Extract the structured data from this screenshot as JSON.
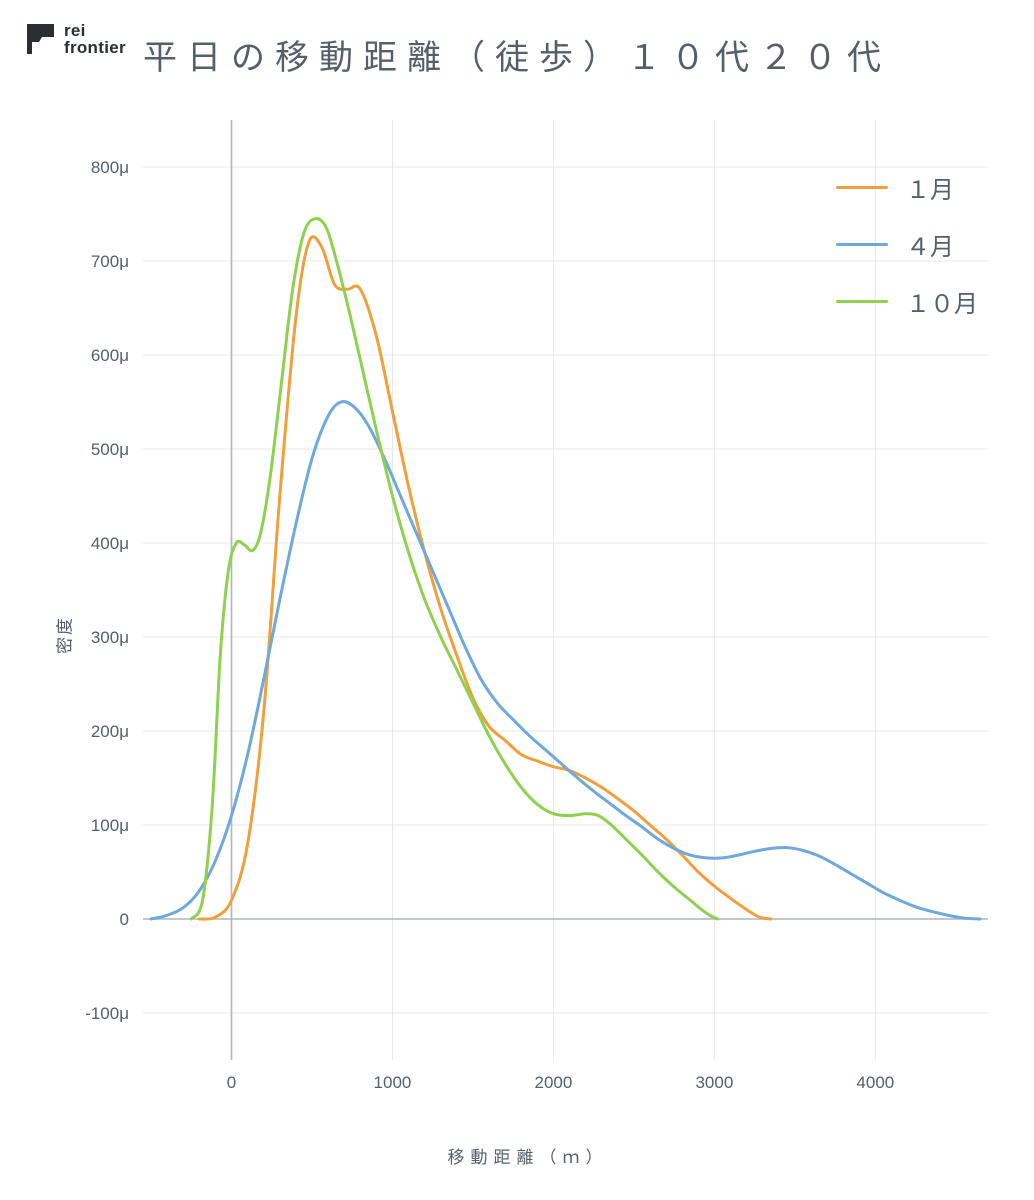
{
  "logo": {
    "line1": "rei",
    "line2": "frontier"
  },
  "title": "平日の移動距離（徒歩）１０代２０代",
  "chart": {
    "type": "line",
    "background_color": "#ffffff",
    "grid_color": "#e8e8e8",
    "axis_color": "#aeb5bc",
    "zero_line_color": "#aeb5bc",
    "line_width": 3,
    "title_fontsize": 34,
    "label_fontsize": 17,
    "tick_fontsize": 17,
    "legend_fontsize": 24,
    "xlabel": "移動距離（ｍ）",
    "ylabel": "密度",
    "xlim": [
      -550,
      4700
    ],
    "ylim": [
      -150,
      850
    ],
    "xticks": [
      0,
      1000,
      2000,
      3000,
      4000
    ],
    "yticks": [
      -100,
      0,
      100,
      200,
      300,
      400,
      500,
      600,
      700,
      800
    ],
    "ytick_suffix": "μ",
    "legend_position": "top-right",
    "series": [
      {
        "name": "１月",
        "color": "#f0a03a",
        "points": [
          [
            -200,
            0
          ],
          [
            -100,
            2
          ],
          [
            0,
            20
          ],
          [
            100,
            80
          ],
          [
            200,
            220
          ],
          [
            300,
            450
          ],
          [
            400,
            640
          ],
          [
            480,
            720
          ],
          [
            560,
            715
          ],
          [
            640,
            675
          ],
          [
            720,
            670
          ],
          [
            800,
            670
          ],
          [
            900,
            620
          ],
          [
            1000,
            540
          ],
          [
            1100,
            460
          ],
          [
            1200,
            390
          ],
          [
            1300,
            330
          ],
          [
            1400,
            280
          ],
          [
            1500,
            235
          ],
          [
            1600,
            205
          ],
          [
            1700,
            190
          ],
          [
            1800,
            175
          ],
          [
            1900,
            168
          ],
          [
            2000,
            162
          ],
          [
            2100,
            158
          ],
          [
            2200,
            150
          ],
          [
            2300,
            140
          ],
          [
            2400,
            128
          ],
          [
            2500,
            115
          ],
          [
            2600,
            100
          ],
          [
            2700,
            85
          ],
          [
            2800,
            68
          ],
          [
            2900,
            50
          ],
          [
            3000,
            35
          ],
          [
            3100,
            22
          ],
          [
            3200,
            10
          ],
          [
            3280,
            2
          ],
          [
            3350,
            0
          ]
        ]
      },
      {
        "name": "４月",
        "color": "#6fa8dc",
        "points": [
          [
            -500,
            0
          ],
          [
            -400,
            4
          ],
          [
            -300,
            12
          ],
          [
            -200,
            30
          ],
          [
            -100,
            62
          ],
          [
            0,
            110
          ],
          [
            100,
            175
          ],
          [
            200,
            255
          ],
          [
            300,
            340
          ],
          [
            400,
            420
          ],
          [
            500,
            490
          ],
          [
            600,
            535
          ],
          [
            680,
            550
          ],
          [
            760,
            545
          ],
          [
            850,
            525
          ],
          [
            950,
            490
          ],
          [
            1050,
            450
          ],
          [
            1150,
            410
          ],
          [
            1250,
            370
          ],
          [
            1350,
            330
          ],
          [
            1450,
            290
          ],
          [
            1550,
            255
          ],
          [
            1650,
            230
          ],
          [
            1750,
            212
          ],
          [
            1850,
            195
          ],
          [
            1950,
            180
          ],
          [
            2050,
            165
          ],
          [
            2150,
            150
          ],
          [
            2250,
            136
          ],
          [
            2350,
            123
          ],
          [
            2450,
            110
          ],
          [
            2550,
            98
          ],
          [
            2650,
            85
          ],
          [
            2750,
            75
          ],
          [
            2850,
            68
          ],
          [
            2950,
            65
          ],
          [
            3050,
            65
          ],
          [
            3150,
            68
          ],
          [
            3250,
            72
          ],
          [
            3350,
            75
          ],
          [
            3450,
            76
          ],
          [
            3550,
            73
          ],
          [
            3650,
            67
          ],
          [
            3750,
            58
          ],
          [
            3850,
            48
          ],
          [
            3950,
            38
          ],
          [
            4050,
            28
          ],
          [
            4150,
            20
          ],
          [
            4250,
            13
          ],
          [
            4350,
            8
          ],
          [
            4450,
            4
          ],
          [
            4550,
            1
          ],
          [
            4650,
            0
          ]
        ]
      },
      {
        "name": "１０月",
        "color": "#8fd14f",
        "points": [
          [
            -250,
            0
          ],
          [
            -180,
            20
          ],
          [
            -120,
            120
          ],
          [
            -70,
            280
          ],
          [
            -20,
            370
          ],
          [
            30,
            400
          ],
          [
            80,
            398
          ],
          [
            130,
            392
          ],
          [
            180,
            410
          ],
          [
            240,
            470
          ],
          [
            310,
            570
          ],
          [
            380,
            670
          ],
          [
            450,
            730
          ],
          [
            520,
            745
          ],
          [
            590,
            735
          ],
          [
            660,
            695
          ],
          [
            740,
            640
          ],
          [
            820,
            580
          ],
          [
            900,
            520
          ],
          [
            1000,
            450
          ],
          [
            1100,
            390
          ],
          [
            1200,
            340
          ],
          [
            1300,
            300
          ],
          [
            1400,
            265
          ],
          [
            1500,
            230
          ],
          [
            1600,
            195
          ],
          [
            1700,
            165
          ],
          [
            1800,
            140
          ],
          [
            1900,
            122
          ],
          [
            2000,
            112
          ],
          [
            2100,
            110
          ],
          [
            2200,
            112
          ],
          [
            2280,
            110
          ],
          [
            2360,
            100
          ],
          [
            2450,
            85
          ],
          [
            2550,
            68
          ],
          [
            2650,
            50
          ],
          [
            2750,
            34
          ],
          [
            2850,
            20
          ],
          [
            2920,
            10
          ],
          [
            2980,
            3
          ],
          [
            3020,
            0
          ]
        ]
      }
    ]
  }
}
